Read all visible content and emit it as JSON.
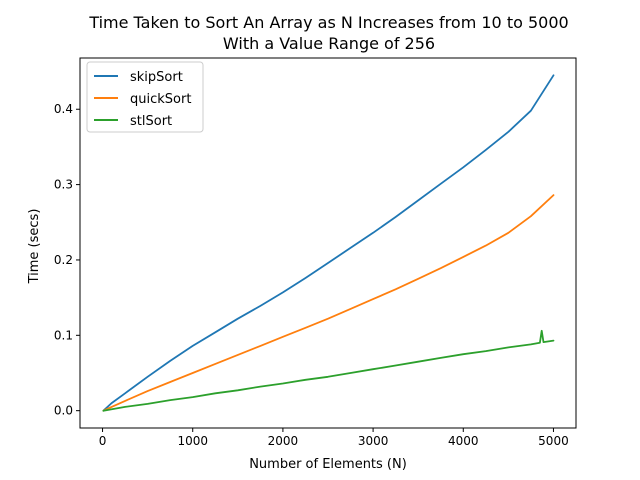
{
  "chart_data": {
    "type": "line",
    "title": [
      "Time Taken to Sort An Array as N Increases from 10 to 5000",
      "With a Value Range of 256"
    ],
    "xlabel": "Number of Elements (N)",
    "ylabel": "Time (secs)",
    "xlim": [
      -250,
      5250
    ],
    "ylim": [
      -0.023,
      0.468
    ],
    "xticks": [
      0,
      1000,
      2000,
      3000,
      4000,
      5000
    ],
    "xtick_labels": [
      "0",
      "1000",
      "2000",
      "3000",
      "4000",
      "5000"
    ],
    "yticks": [
      0.0,
      0.1,
      0.2,
      0.3,
      0.4
    ],
    "ytick_labels": [
      "0.0",
      "0.1",
      "0.2",
      "0.3",
      "0.4"
    ],
    "grid": false,
    "legend_position": "top-left",
    "series": [
      {
        "name": "skipSort",
        "color": "#1f77b4",
        "x": [
          10,
          100,
          250,
          500,
          750,
          1000,
          1250,
          1500,
          1750,
          2000,
          2250,
          2500,
          2750,
          3000,
          3250,
          3500,
          3750,
          4000,
          4250,
          4500,
          4750,
          5000
        ],
        "y": [
          0.0,
          0.01,
          0.023,
          0.045,
          0.066,
          0.086,
          0.104,
          0.122,
          0.139,
          0.157,
          0.176,
          0.196,
          0.216,
          0.236,
          0.257,
          0.279,
          0.301,
          0.323,
          0.346,
          0.37,
          0.398,
          0.445
        ]
      },
      {
        "name": "quickSort",
        "color": "#ff7f0e",
        "x": [
          10,
          100,
          250,
          500,
          750,
          1000,
          1250,
          1500,
          1750,
          2000,
          2250,
          2500,
          2750,
          3000,
          3250,
          3500,
          3750,
          4000,
          4250,
          4500,
          4750,
          5000
        ],
        "y": [
          0.0,
          0.005,
          0.013,
          0.026,
          0.038,
          0.05,
          0.062,
          0.074,
          0.086,
          0.098,
          0.11,
          0.122,
          0.135,
          0.148,
          0.161,
          0.175,
          0.189,
          0.204,
          0.219,
          0.236,
          0.258,
          0.286
        ]
      },
      {
        "name": "stlSort",
        "color": "#2ca02c",
        "x": [
          10,
          250,
          500,
          750,
          1000,
          1250,
          1500,
          1750,
          2000,
          2250,
          2500,
          2750,
          3000,
          3250,
          3500,
          3750,
          4000,
          4250,
          4500,
          4750,
          4850,
          4870,
          4890,
          5000
        ],
        "y": [
          0.0,
          0.005,
          0.009,
          0.014,
          0.018,
          0.023,
          0.027,
          0.032,
          0.036,
          0.041,
          0.045,
          0.05,
          0.055,
          0.06,
          0.065,
          0.07,
          0.075,
          0.079,
          0.084,
          0.088,
          0.09,
          0.106,
          0.091,
          0.093
        ]
      }
    ]
  }
}
